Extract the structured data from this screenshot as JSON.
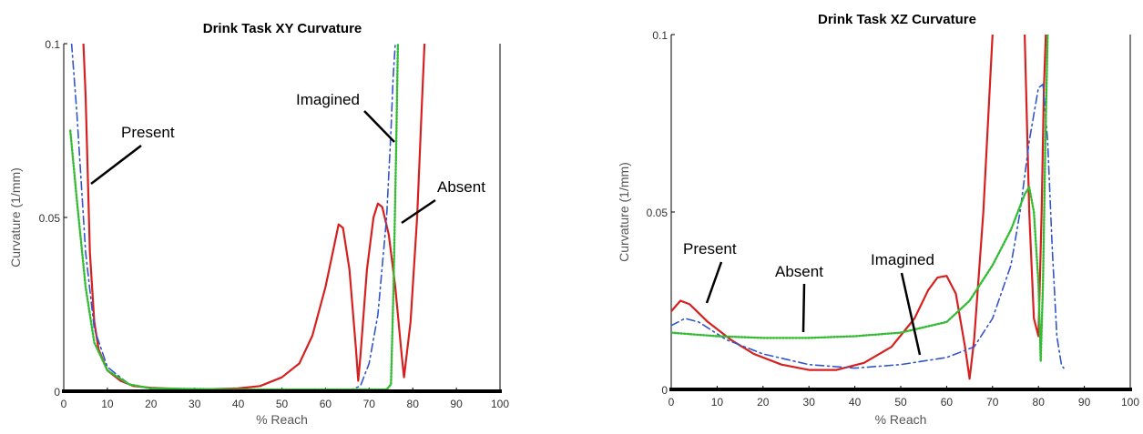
{
  "chart_data": [
    {
      "type": "line",
      "title": "Drink Task XY Curvature",
      "xlabel": "% Reach",
      "ylabel": "Curvature (1/mm)",
      "xlim": [
        0,
        100
      ],
      "ylim": [
        0,
        0.1
      ],
      "xticks": [
        "0",
        "10",
        "20",
        "30",
        "40",
        "50",
        "60",
        "70",
        "80",
        "90",
        "100"
      ],
      "yticks": [
        "0",
        "0.05",
        "0.1"
      ],
      "grid": false,
      "annotations": [
        "Present",
        "Imagined",
        "Absent"
      ],
      "series": [
        {
          "color": "#d62020",
          "style": "solid",
          "points": [
            [
              4.5,
              0.1
            ],
            [
              5,
              0.085
            ],
            [
              6,
              0.04
            ],
            [
              7,
              0.02
            ],
            [
              8,
              0.012
            ],
            [
              10,
              0.006
            ],
            [
              13,
              0.003
            ],
            [
              16,
              0.0015
            ],
            [
              20,
              0.001
            ],
            [
              30,
              0.0005
            ],
            [
              40,
              0.0008
            ],
            [
              45,
              0.0015
            ],
            [
              50,
              0.004
            ],
            [
              54,
              0.008
            ],
            [
              57,
              0.016
            ],
            [
              60,
              0.03
            ],
            [
              62,
              0.042
            ],
            [
              63,
              0.048
            ],
            [
              64,
              0.047
            ],
            [
              65.5,
              0.035
            ],
            [
              67,
              0.012
            ],
            [
              67.5,
              0.003
            ],
            [
              68,
              0.01
            ],
            [
              69.5,
              0.035
            ],
            [
              71,
              0.05
            ],
            [
              72,
              0.054
            ],
            [
              73,
              0.053
            ],
            [
              74.5,
              0.045
            ],
            [
              76,
              0.03
            ],
            [
              77.5,
              0.01
            ],
            [
              78,
              0.004
            ],
            [
              79.5,
              0.02
            ],
            [
              81,
              0.05
            ],
            [
              82,
              0.08
            ],
            [
              82.7,
              0.1
            ]
          ]
        },
        {
          "color": "#3355cc",
          "style": "dashdot",
          "points": [
            [
              1.8,
              0.1
            ],
            [
              3,
              0.08
            ],
            [
              5,
              0.04
            ],
            [
              7,
              0.018
            ],
            [
              10,
              0.007
            ],
            [
              15,
              0.002
            ],
            [
              20,
              0.0008
            ],
            [
              40,
              0.0005
            ],
            [
              60,
              0.0005
            ],
            [
              66,
              0.0005
            ],
            [
              68,
              0.0015
            ],
            [
              70,
              0.008
            ],
            [
              72,
              0.022
            ],
            [
              74,
              0.05
            ],
            [
              75,
              0.075
            ],
            [
              75.5,
              0.09
            ],
            [
              76,
              0.1
            ]
          ]
        },
        {
          "color": "#33bb33",
          "style": "dotted",
          "points": [
            [
              1.5,
              0.075
            ],
            [
              3,
              0.055
            ],
            [
              5,
              0.03
            ],
            [
              7,
              0.014
            ],
            [
              10,
              0.006
            ],
            [
              15,
              0.002
            ],
            [
              20,
              0.0008
            ],
            [
              40,
              0.0005
            ],
            [
              60,
              0.0005
            ],
            [
              74,
              0.0005
            ],
            [
              75,
              0.002
            ],
            [
              75.6,
              0.03
            ],
            [
              76.2,
              0.07
            ],
            [
              76.6,
              0.1
            ]
          ]
        }
      ]
    },
    {
      "type": "line",
      "title": "Drink Task XZ Curvature",
      "xlabel": "% Reach",
      "ylabel": "Curvature (1/mm)",
      "xlim": [
        0,
        100
      ],
      "ylim": [
        0,
        0.1
      ],
      "xticks": [
        "0",
        "10",
        "20",
        "30",
        "40",
        "50",
        "60",
        "70",
        "80",
        "90",
        "100"
      ],
      "yticks": [
        "0",
        "0.05",
        "0.1"
      ],
      "grid": false,
      "annotations": [
        "Present",
        "Absent",
        "Imagined"
      ],
      "series": [
        {
          "color": "#d62020",
          "style": "solid",
          "points": [
            [
              0,
              0.022
            ],
            [
              2,
              0.025
            ],
            [
              4,
              0.024
            ],
            [
              8,
              0.019
            ],
            [
              13,
              0.014
            ],
            [
              18,
              0.01
            ],
            [
              24,
              0.007
            ],
            [
              30,
              0.0055
            ],
            [
              36,
              0.0055
            ],
            [
              42,
              0.0075
            ],
            [
              48,
              0.012
            ],
            [
              53,
              0.02
            ],
            [
              56,
              0.028
            ],
            [
              58,
              0.0315
            ],
            [
              60,
              0.032
            ],
            [
              62,
              0.027
            ],
            [
              64,
              0.012
            ],
            [
              65,
              0.003
            ],
            [
              66,
              0.014
            ],
            [
              68,
              0.05
            ],
            [
              70,
              0.1
            ],
            [
              71,
              0.13
            ],
            [
              76,
              0.13
            ],
            [
              77,
              0.1
            ],
            [
              78,
              0.05
            ],
            [
              79,
              0.02
            ],
            [
              80,
              0.015
            ],
            [
              80.7,
              0.05
            ],
            [
              81.2,
              0.085
            ],
            [
              81.6,
              0.1
            ]
          ]
        },
        {
          "color": "#3355cc",
          "style": "dashdot",
          "points": [
            [
              0,
              0.018
            ],
            [
              3,
              0.02
            ],
            [
              6,
              0.019
            ],
            [
              12,
              0.014
            ],
            [
              20,
              0.01
            ],
            [
              30,
              0.007
            ],
            [
              40,
              0.006
            ],
            [
              50,
              0.007
            ],
            [
              60,
              0.009
            ],
            [
              66,
              0.012
            ],
            [
              70,
              0.02
            ],
            [
              74,
              0.035
            ],
            [
              76,
              0.05
            ],
            [
              78,
              0.07
            ],
            [
              80,
              0.085
            ],
            [
              81,
              0.086
            ],
            [
              82,
              0.07
            ],
            [
              83,
              0.04
            ],
            [
              84,
              0.015
            ],
            [
              85,
              0.007
            ],
            [
              85.5,
              0.006
            ],
            [
              85.5,
              0.007
            ]
          ]
        },
        {
          "color": "#33bb33",
          "style": "dotted",
          "points": [
            [
              0,
              0.016
            ],
            [
              5,
              0.0155
            ],
            [
              10,
              0.015
            ],
            [
              20,
              0.0145
            ],
            [
              30,
              0.0145
            ],
            [
              40,
              0.015
            ],
            [
              50,
              0.016
            ],
            [
              60,
              0.019
            ],
            [
              65,
              0.025
            ],
            [
              70,
              0.035
            ],
            [
              74,
              0.045
            ],
            [
              77,
              0.055
            ],
            [
              78,
              0.057
            ],
            [
              79,
              0.05
            ],
            [
              80,
              0.03
            ],
            [
              80.5,
              0.008
            ],
            [
              81,
              0.03
            ],
            [
              81.5,
              0.07
            ],
            [
              82,
              0.1
            ]
          ]
        }
      ]
    }
  ]
}
